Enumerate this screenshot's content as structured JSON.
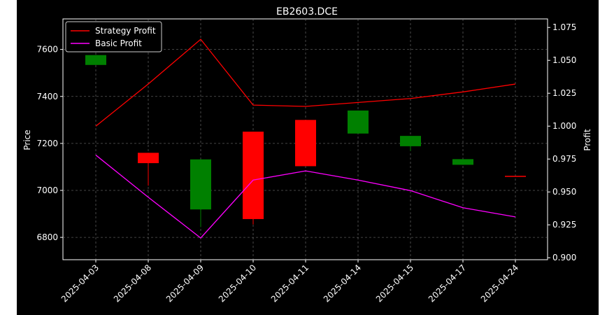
{
  "chart_data": {
    "type": "candlestick",
    "title": "EB2603.DCE",
    "xlabel": "",
    "ylabel": "Price",
    "y2label": "Profit",
    "categories": [
      "2025-04-03",
      "2025-04-08",
      "2025-04-09",
      "2025-04-10",
      "2025-04-11",
      "2025-04-14",
      "2025-04-15",
      "2025-04-17",
      "2025-04-24"
    ],
    "ylim": [
      6705,
      7730
    ],
    "y2lim": [
      0.8985,
      1.0815
    ],
    "yticks": [
      6800,
      7000,
      7200,
      7400,
      7600
    ],
    "y2ticks": [
      "0.900",
      "0.925",
      "0.950",
      "0.975",
      "1.000",
      "1.025",
      "1.050",
      "1.075"
    ],
    "grid": true,
    "legend_position": "top-left",
    "candles": [
      {
        "open": 7534,
        "close": 7576,
        "high": 7576,
        "low": 7534,
        "color": "green"
      },
      {
        "open": 7160,
        "close": 7116,
        "high": 7160,
        "low": 7020,
        "color": "red"
      },
      {
        "open": 7132,
        "close": 6919,
        "high": 7132,
        "low": 6844,
        "color": "green"
      },
      {
        "open": 6878,
        "close": 7250,
        "high": 7250,
        "low": 6855,
        "color": "red"
      },
      {
        "open": 7103,
        "close": 7300,
        "high": 7300,
        "low": 7103,
        "color": "red"
      },
      {
        "open": 7340,
        "close": 7242,
        "high": 7340,
        "low": 7242,
        "color": "green"
      },
      {
        "open": 7232,
        "close": 7188,
        "high": 7232,
        "low": 7168,
        "color": "green"
      },
      {
        "open": 7133,
        "close": 7109,
        "high": 7133,
        "low": 7109,
        "color": "green"
      },
      {
        "open": 7058,
        "close": 7062,
        "high": 7062,
        "low": 7058,
        "color": "red"
      }
    ],
    "series": [
      {
        "name": "Strategy Profit",
        "color": "#ff0000",
        "values": [
          1.0,
          1.032,
          1.066,
          1.016,
          1.015,
          1.018,
          1.021,
          1.026,
          1.032
        ]
      },
      {
        "name": "Basic Profit",
        "color": "#ff00ff",
        "values": [
          0.978,
          0.946,
          0.915,
          0.959,
          0.966,
          0.959,
          0.951,
          0.938,
          0.931
        ]
      }
    ],
    "colors": {
      "up": "#ff0000",
      "down": "#008000",
      "background": "#000000",
      "figure": "#ffffff"
    }
  }
}
